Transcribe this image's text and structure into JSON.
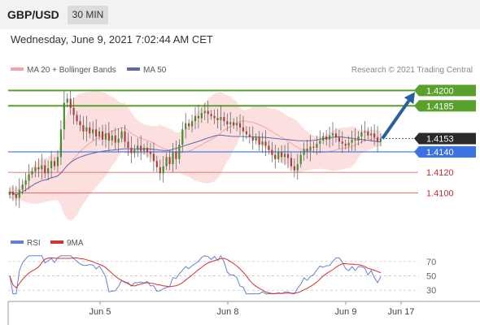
{
  "header": {
    "pair": "GBP/USD",
    "timeframe": "30 MIN",
    "datetime": "Wednesday, June 9, 2021 7:02:44 AM CET"
  },
  "legend": {
    "ma20_label": "MA 20 + Bollinger Bands",
    "ma50_label": "MA 50",
    "credit": "Research © 2021 Trading Central",
    "rsi_label": "RSI",
    "rsi_ma_label": "9MA"
  },
  "colors": {
    "resistance": "#5aa02c",
    "support": "#3b73e0",
    "support_weak": "#e05050",
    "ma20": "#f5a3a3",
    "ma50": "#5b6aa8",
    "bollinger": "#fbd6d6",
    "candle_up": "#3f8f2f",
    "candle_down": "#b23a3a",
    "arrow": "#2a5f9e",
    "current": "#2a2a2a",
    "rsi": "#6680d6",
    "rsi_ma": "#d63030"
  },
  "chart_data": {
    "type": "candlestick",
    "y_range_plot": [
      1.4078,
      1.4213
    ],
    "price_levels": [
      {
        "value": 1.42,
        "label": "1.4200",
        "role": "resistance"
      },
      {
        "value": 1.4185,
        "label": "1.4185",
        "role": "resistance"
      },
      {
        "value": 1.4153,
        "label": "1.4153",
        "role": "current"
      },
      {
        "value": 1.414,
        "label": "1.4140",
        "role": "pivot"
      },
      {
        "value": 1.412,
        "label": "1.4120",
        "role": "support"
      },
      {
        "value": 1.41,
        "label": "1.4100",
        "role": "support"
      }
    ],
    "x_ticks": [
      "Jun 5",
      "Jun 8",
      "Jun 9",
      "Jun 17"
    ],
    "closes": [
      1.4101,
      1.4098,
      1.4095,
      1.4103,
      1.4108,
      1.4112,
      1.4118,
      1.4121,
      1.4125,
      1.4123,
      1.4127,
      1.4119,
      1.4124,
      1.4131,
      1.4126,
      1.4135,
      1.4162,
      1.4188,
      1.4192,
      1.4183,
      1.4176,
      1.417,
      1.4166,
      1.416,
      1.4164,
      1.4158,
      1.4162,
      1.4155,
      1.416,
      1.4152,
      1.4158,
      1.4151,
      1.4156,
      1.4149,
      1.4153,
      1.416,
      1.415,
      1.4144,
      1.4139,
      1.4142,
      1.4146,
      1.4141,
      1.4144,
      1.414,
      1.4138,
      1.4131,
      1.4125,
      1.4119,
      1.4126,
      1.4135,
      1.4128,
      1.414,
      1.4133,
      1.4147,
      1.4162,
      1.4168,
      1.4165,
      1.417,
      1.4175,
      1.4173,
      1.4178,
      1.418,
      1.4177,
      1.4175,
      1.4173,
      1.4171,
      1.4174,
      1.417,
      1.4167,
      1.4169,
      1.4166,
      1.4168,
      1.4164,
      1.416,
      1.4157,
      1.4155,
      1.4151,
      1.4154,
      1.4147,
      1.415,
      1.4146,
      1.4142,
      1.4137,
      1.4133,
      1.414,
      1.4135,
      1.4138,
      1.4134,
      1.4126,
      1.4122,
      1.4128,
      1.4137,
      1.4143,
      1.4141,
      1.4145,
      1.4144,
      1.4148,
      1.4151,
      1.4155,
      1.4152,
      1.4156,
      1.4158,
      1.4154,
      1.415,
      1.4148,
      1.4146,
      1.4149,
      1.4152,
      1.4151,
      1.4155,
      1.4159,
      1.416,
      1.4156,
      1.4158,
      1.4154,
      1.415,
      1.4153
    ],
    "rsi": {
      "levels": [
        70,
        50,
        30
      ],
      "range": [
        20,
        80
      ]
    }
  }
}
